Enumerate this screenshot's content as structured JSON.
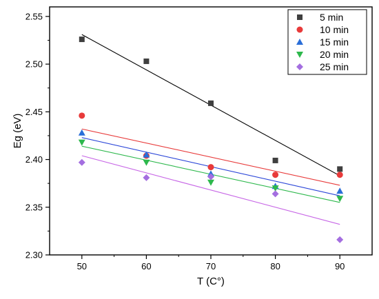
{
  "chart_data": {
    "type": "scatter",
    "title": "",
    "xlabel": "T (C°)",
    "ylabel": "Eg (eV)",
    "xlim": [
      45,
      95
    ],
    "ylim": [
      2.3,
      2.56
    ],
    "xticks": [
      "50",
      "60",
      "70",
      "80",
      "90"
    ],
    "yticks": [
      "2.30",
      "2.35",
      "2.40",
      "2.45",
      "2.50",
      "2.55"
    ],
    "grid": false,
    "legend_position": "top-right",
    "x": [
      50,
      60,
      70,
      80,
      90
    ],
    "series": [
      {
        "name": "5 min",
        "marker": "square",
        "color": "#3f3f3f",
        "fit_color": "#000000",
        "values": [
          2.526,
          2.503,
          2.459,
          2.399,
          2.39
        ],
        "fit": [
          2.531,
          2.383
        ]
      },
      {
        "name": "10 min",
        "marker": "circle",
        "color": "#e83a3a",
        "fit_color": "#e83a3a",
        "values": [
          2.446,
          2.404,
          2.392,
          2.384,
          2.384
        ],
        "fit": [
          2.432,
          2.373
        ]
      },
      {
        "name": "15 min",
        "marker": "triangle-up",
        "color": "#2a6ed8",
        "fit_color": "#2a45d8",
        "values": [
          2.428,
          2.405,
          2.385,
          2.372,
          2.367
        ],
        "fit": [
          2.423,
          2.362
        ]
      },
      {
        "name": "20 min",
        "marker": "triangle-down",
        "color": "#2db84c",
        "fit_color": "#2db84c",
        "values": [
          2.418,
          2.397,
          2.376,
          2.37,
          2.359
        ],
        "fit": [
          2.414,
          2.355
        ]
      },
      {
        "name": "25 min",
        "marker": "diamond",
        "color": "#a46ee0",
        "fit_color": "#c766e6",
        "values": [
          2.397,
          2.381,
          2.382,
          2.364,
          2.316
        ],
        "fit": [
          2.404,
          2.332
        ]
      }
    ]
  }
}
